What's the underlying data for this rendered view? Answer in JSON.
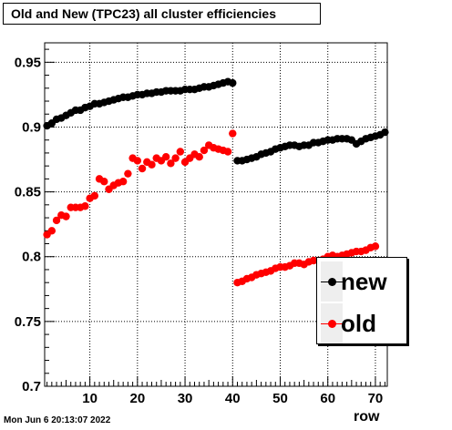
{
  "title": "Old and New (TPC23) all cluster efficiencies",
  "timestamp": "Mon Jun  6 20:13:07 2022",
  "chart_data": {
    "type": "scatter",
    "xlabel": "row",
    "ylabel": "",
    "xlim": [
      0.5,
      72.5
    ],
    "ylim": [
      0.7,
      0.965
    ],
    "xticks": [
      "10",
      "20",
      "30",
      "40",
      "50",
      "60",
      "70"
    ],
    "yticks": [
      "0.7",
      "0.75",
      "0.8",
      "0.85",
      "0.9",
      "0.95"
    ],
    "grid": true,
    "legend_placement": "lower-right",
    "series": [
      {
        "name": "new",
        "color": "#000000",
        "x": [
          1,
          2,
          3,
          4,
          5,
          6,
          7,
          8,
          9,
          10,
          11,
          12,
          13,
          14,
          15,
          16,
          17,
          18,
          19,
          20,
          21,
          22,
          23,
          24,
          25,
          26,
          27,
          28,
          29,
          30,
          31,
          32,
          33,
          34,
          35,
          36,
          37,
          38,
          39,
          40,
          41,
          42,
          43,
          44,
          45,
          46,
          47,
          48,
          49,
          50,
          51,
          52,
          53,
          54,
          55,
          56,
          57,
          58,
          59,
          60,
          61,
          62,
          63,
          64,
          65,
          66,
          67,
          68,
          69,
          70,
          71,
          72
        ],
        "values": [
          0.901,
          0.903,
          0.906,
          0.907,
          0.909,
          0.911,
          0.913,
          0.913,
          0.915,
          0.916,
          0.918,
          0.918,
          0.919,
          0.92,
          0.921,
          0.922,
          0.923,
          0.923,
          0.924,
          0.925,
          0.925,
          0.926,
          0.926,
          0.927,
          0.927,
          0.928,
          0.928,
          0.928,
          0.928,
          0.929,
          0.929,
          0.929,
          0.93,
          0.931,
          0.931,
          0.932,
          0.933,
          0.934,
          0.935,
          0.934,
          0.874,
          0.874,
          0.875,
          0.876,
          0.877,
          0.879,
          0.88,
          0.881,
          0.883,
          0.884,
          0.885,
          0.886,
          0.886,
          0.885,
          0.886,
          0.886,
          0.888,
          0.888,
          0.889,
          0.89,
          0.89,
          0.891,
          0.891,
          0.891,
          0.89,
          0.887,
          0.889,
          0.891,
          0.892,
          0.893,
          0.894,
          0.896
        ]
      },
      {
        "name": "old",
        "color": "#ff0000",
        "x": [
          1,
          2,
          3,
          4,
          5,
          6,
          7,
          8,
          9,
          10,
          11,
          12,
          13,
          14,
          15,
          16,
          17,
          18,
          19,
          20,
          21,
          22,
          23,
          24,
          25,
          26,
          27,
          28,
          29,
          30,
          31,
          32,
          33,
          34,
          35,
          36,
          37,
          38,
          39,
          40,
          41,
          42,
          43,
          44,
          45,
          46,
          47,
          48,
          49,
          50,
          51,
          52,
          53,
          54,
          55,
          56,
          57,
          58,
          59,
          60,
          61,
          62,
          63,
          64,
          65,
          66,
          67,
          68,
          69,
          70,
          71,
          72
        ],
        "values": [
          0.817,
          0.82,
          0.828,
          0.832,
          0.831,
          0.838,
          0.838,
          0.838,
          0.839,
          0.845,
          0.847,
          0.86,
          0.858,
          0.852,
          0.855,
          0.857,
          0.858,
          0.864,
          0.876,
          0.874,
          0.868,
          0.873,
          0.871,
          0.876,
          0.874,
          0.877,
          0.872,
          0.876,
          0.881,
          0.873,
          0.876,
          0.879,
          0.877,
          0.882,
          0.886,
          0.884,
          0.883,
          0.882,
          0.881,
          0.895,
          0.78,
          0.781,
          0.783,
          0.784,
          0.786,
          0.787,
          0.788,
          0.789,
          0.791,
          0.792,
          0.792,
          0.793,
          0.795,
          0.795,
          0.794,
          0.796,
          0.797,
          0.797,
          0.798,
          0.8,
          0.801,
          0.8,
          0.801,
          0.802,
          0.803,
          0.804,
          0.804,
          0.805,
          0.807,
          0.808,
          0.774,
          0.774
        ]
      }
    ]
  }
}
